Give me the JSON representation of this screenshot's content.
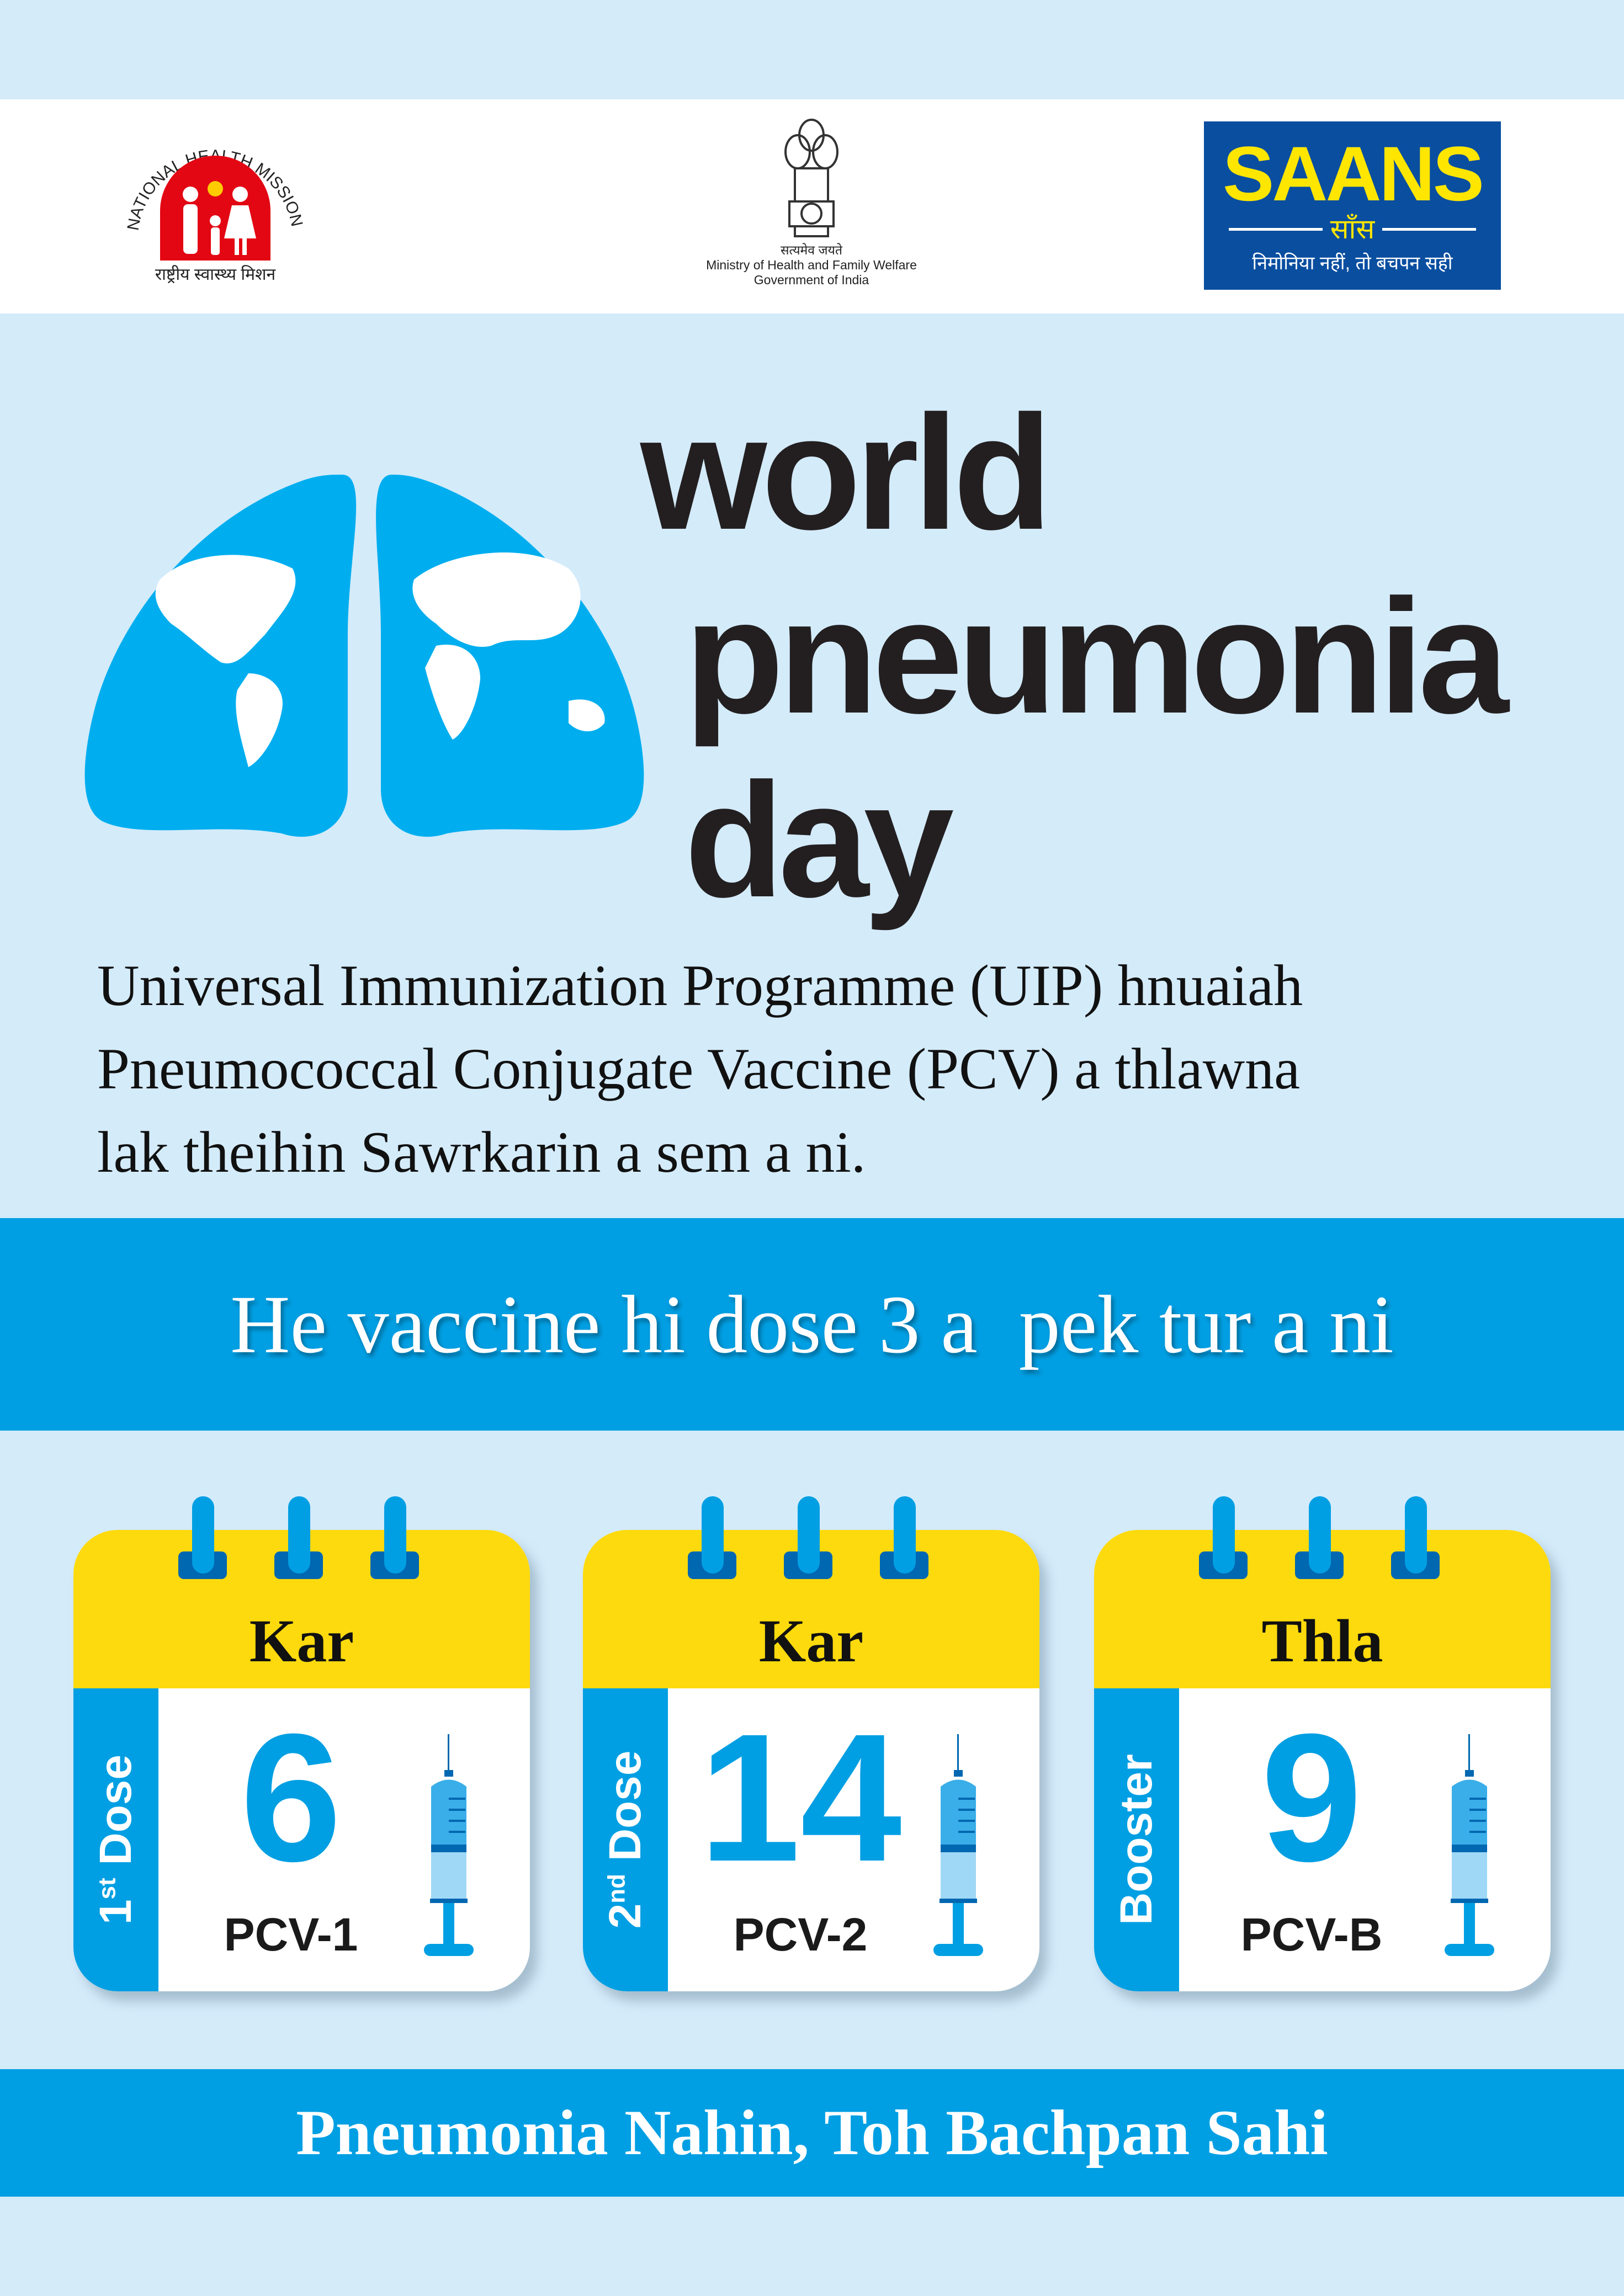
{
  "header": {
    "nhm_logo": {
      "arc_text": "NATIONAL HEALTH MISSION",
      "hindi": "राष्ट्रीय स्वास्थ्य मिशन"
    },
    "emblem": {
      "motto": "सत्यमेव जयते",
      "line1": "Ministry of Health and Family Welfare",
      "line2": "Government of India"
    },
    "saans_logo": {
      "wordmark": "SAANS",
      "hindi": "साँस",
      "tagline": "निमोनिया नहीं, तो बचपन सही"
    }
  },
  "hero": {
    "title_line1": "world",
    "title_line2": "pneumonia",
    "title_line3": "day"
  },
  "colors": {
    "background": "#d4ebfa",
    "accent_blue": "#009fe3",
    "lung_blue": "#00aeef",
    "yellow": "#fdda0d",
    "saans_blue": "#0a4ea0"
  },
  "intro": {
    "line1": "Universal Immunization Programme (UIP) hnuaiah",
    "line2": "Pneumococcal Conjugate Vaccine (PCV) a thlawna",
    "line3": "lak theihin Sawrkarin a sem a ni."
  },
  "band": {
    "text": "He vaccine hi dose 3 a  pek tur a ni"
  },
  "doses": [
    {
      "unit": "Kar",
      "dose_num": "1",
      "dose_sup": "st",
      "dose_word": " Dose",
      "value": "6",
      "vaccine": "PCV-1"
    },
    {
      "unit": "Kar",
      "dose_num": "2",
      "dose_sup": "nd",
      "dose_word": " Dose",
      "value": "14",
      "vaccine": "PCV-2"
    },
    {
      "unit": "Thla",
      "dose_num": "",
      "dose_sup": "",
      "dose_word": "Booster",
      "value": "9",
      "vaccine": "PCV-B"
    }
  ],
  "footer": {
    "slogan": "Pneumonia Nahin, Toh Bachpan Sahi"
  }
}
